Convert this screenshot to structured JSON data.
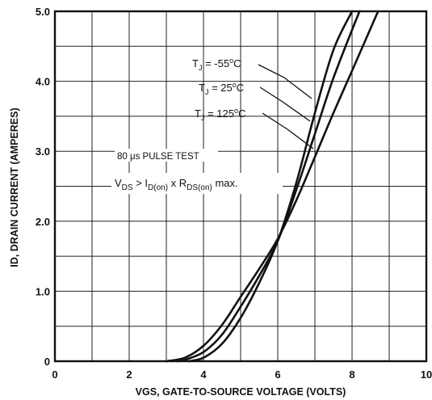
{
  "chart_data": {
    "type": "line",
    "xlabel": "VGS, GATE-TO-SOURCE VOLTAGE (VOLTS)",
    "ylabel": "ID, DRAIN CURRENT (AMPERES)",
    "xlim": [
      0,
      10
    ],
    "ylim": [
      0,
      5.0
    ],
    "x_ticks": [
      "0",
      "2",
      "4",
      "6",
      "8",
      "10"
    ],
    "y_ticks": [
      "0",
      "1.0",
      "2.0",
      "3.0",
      "4.0",
      "5.0"
    ],
    "grid": true,
    "annotation_lines": [
      "80 μs PULSE TEST",
      "VDS > ID(on) x RDS(on) max."
    ],
    "series": [
      {
        "name": "TJ = -55°C",
        "x": [
          3.6,
          4.0,
          4.5,
          5.0,
          5.5,
          6.0,
          6.5,
          7.0,
          7.5,
          8.0
        ],
        "y": [
          0.0,
          0.05,
          0.25,
          0.62,
          1.12,
          1.72,
          2.55,
          3.55,
          4.45,
          5.0
        ]
      },
      {
        "name": "TJ = 25°C",
        "x": [
          3.3,
          3.5,
          4.0,
          4.5,
          5.0,
          5.5,
          6.0,
          6.5,
          7.0,
          7.5,
          8.2
        ],
        "y": [
          0.0,
          0.02,
          0.13,
          0.38,
          0.78,
          1.22,
          1.72,
          2.45,
          3.25,
          4.05,
          5.0
        ]
      },
      {
        "name": "TJ = 125°C",
        "x": [
          3.0,
          3.5,
          4.0,
          4.5,
          5.0,
          5.5,
          6.0,
          6.5,
          7.0,
          7.5,
          8.0,
          8.7
        ],
        "y": [
          0.0,
          0.05,
          0.22,
          0.52,
          0.92,
          1.32,
          1.75,
          2.3,
          2.92,
          3.55,
          4.15,
          5.0
        ]
      }
    ]
  }
}
